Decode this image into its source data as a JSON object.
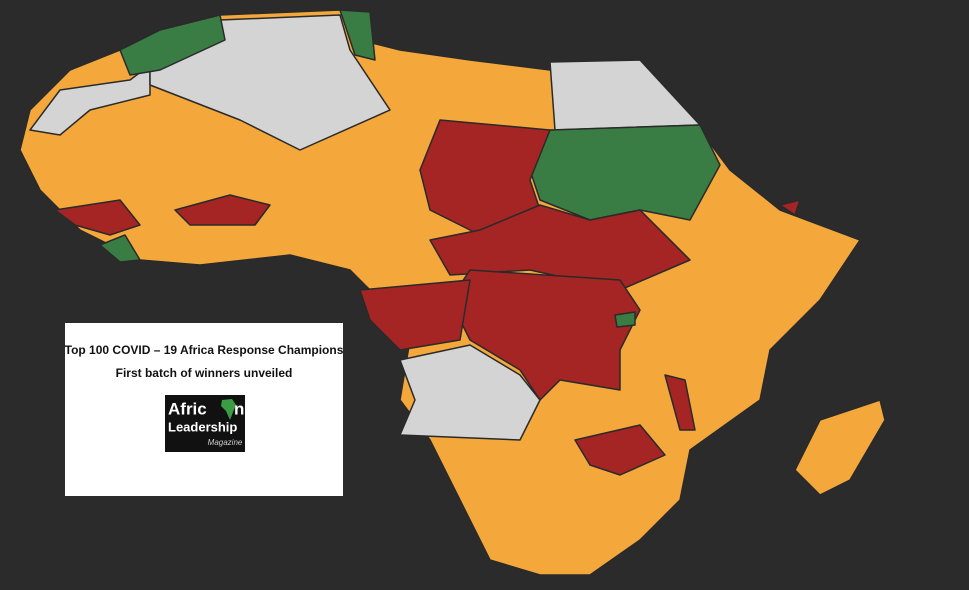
{
  "header": {
    "title": "Top 100 COVID – 19 Africa Response Champions",
    "subtitle": "First batch of winners unveiled"
  },
  "logo": {
    "word_start": "Afric",
    "word_end": "n",
    "line2": "Leadership",
    "line3": "Magazine"
  }
}
